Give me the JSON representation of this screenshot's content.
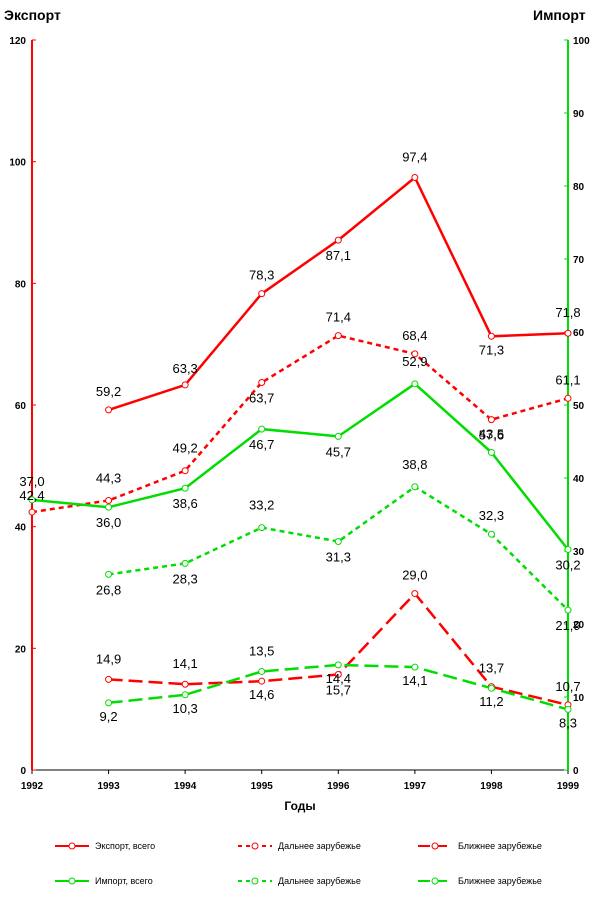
{
  "chart_data": {
    "type": "line",
    "left_axis_title": "Экспорт",
    "right_axis_title": "Импорт",
    "xlabel": "Годы",
    "x": [
      "1992",
      "1993",
      "1994",
      "1995",
      "1996",
      "1997",
      "1998",
      "1999"
    ],
    "left_ylim": [
      0,
      120
    ],
    "left_yticks": [
      "0",
      "20",
      "40",
      "60",
      "80",
      "100",
      "120"
    ],
    "right_ylim": [
      0,
      100
    ],
    "right_yticks": [
      "0",
      "10",
      "20",
      "30",
      "40",
      "50",
      "60",
      "70",
      "80",
      "90",
      "100"
    ],
    "grid": false,
    "legend_position": "bottom",
    "colors": {
      "export": "#ff0000",
      "import": "#00dd00"
    },
    "series": [
      {
        "name": "Экспорт, всего",
        "axis": "left",
        "color": "#ff0000",
        "dash": "solid",
        "values": [
          null,
          59.2,
          63.3,
          78.3,
          87.1,
          97.4,
          71.3,
          71.8
        ],
        "labels": [
          null,
          "59,2",
          "63,3",
          "78,3",
          "87,1",
          "97,4",
          "71,3",
          "71,8"
        ]
      },
      {
        "name": "Дальнее зарубежье",
        "axis": "left",
        "color": "#ff0000",
        "dash": "dash",
        "values": [
          42.4,
          44.3,
          49.2,
          63.7,
          71.4,
          68.4,
          57.6,
          61.1
        ],
        "labels": [
          "42,4",
          "44,3",
          "49,2",
          "63,7",
          "71,4",
          "68,4",
          "57,6",
          "61,1"
        ]
      },
      {
        "name": "Ближнее зарубежье",
        "axis": "left",
        "color": "#ff0000",
        "dash": "longdash",
        "values": [
          null,
          14.9,
          14.1,
          14.6,
          15.7,
          29.0,
          13.7,
          10.7
        ],
        "labels": [
          null,
          "14,9",
          "14,1",
          "14,6",
          "15,7",
          "29,0",
          "13,7",
          "10,7"
        ]
      },
      {
        "name": "Импорт, всего",
        "axis": "right",
        "color": "#00dd00",
        "dash": "solid",
        "values": [
          37.0,
          36.0,
          38.6,
          46.7,
          45.7,
          52.9,
          43.5,
          30.2
        ],
        "labels": [
          "37,0",
          "36,0",
          "38,6",
          "46,7",
          "45,7",
          "52,9",
          "43,5",
          "30,2"
        ]
      },
      {
        "name": "Дальнее зарубежье",
        "axis": "right",
        "color": "#00dd00",
        "dash": "dash",
        "values": [
          null,
          26.8,
          28.3,
          33.2,
          31.3,
          38.8,
          32.3,
          21.9
        ],
        "labels": [
          null,
          "26,8",
          "28,3",
          "33,2",
          "31,3",
          "38,8",
          "32,3",
          "21,9"
        ]
      },
      {
        "name": "Ближнее зарубежье",
        "axis": "right",
        "color": "#00dd00",
        "dash": "longdash",
        "values": [
          null,
          9.2,
          10.3,
          13.5,
          14.4,
          14.1,
          11.2,
          8.3
        ],
        "labels": [
          null,
          "9,2",
          "10,3",
          "13,5",
          "14,4",
          "14,1",
          "11,2",
          "8,3"
        ]
      }
    ]
  }
}
